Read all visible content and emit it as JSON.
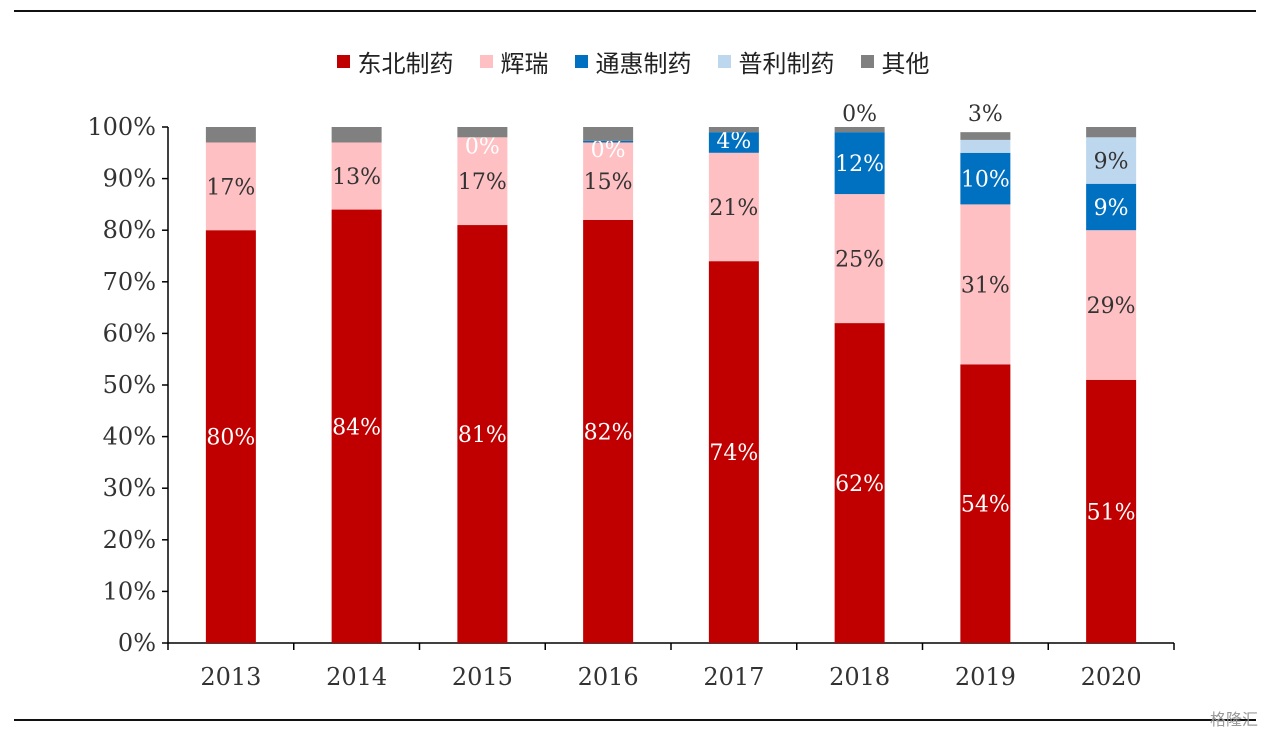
{
  "chart_data": {
    "type": "bar",
    "stacked": true,
    "categories": [
      "2013",
      "2014",
      "2015",
      "2016",
      "2017",
      "2018",
      "2019",
      "2020"
    ],
    "series": [
      {
        "name": "东北制药",
        "color": "#c00000",
        "values": [
          80,
          84,
          81,
          82,
          74,
          62,
          54,
          51
        ],
        "labels": [
          "80%",
          "84%",
          "81%",
          "82%",
          "74%",
          "62%",
          "54%",
          "51%"
        ]
      },
      {
        "name": "辉瑞",
        "color": "#ffc0c4",
        "values": [
          17,
          13,
          17,
          15,
          21,
          25,
          31,
          29
        ],
        "labels": [
          "17%",
          "13%",
          "17%",
          "15%",
          "21%",
          "25%",
          "31%",
          "29%"
        ]
      },
      {
        "name": "通惠制药",
        "color": "#0070c0",
        "values": [
          0,
          0,
          0,
          0.3,
          4,
          12,
          10,
          9
        ],
        "labels": [
          "",
          "",
          "0%",
          "0%",
          "4%",
          "12%",
          "10%",
          "9%"
        ]
      },
      {
        "name": "普利制药",
        "color": "#bdd7ee",
        "values": [
          0,
          0,
          0,
          0,
          0,
          0,
          2.5,
          9
        ],
        "labels": [
          "",
          "",
          "",
          "",
          "",
          "0%",
          "3%",
          "9%"
        ]
      },
      {
        "name": "其他",
        "color": "#808080",
        "values": [
          3,
          3,
          2,
          2.7,
          1,
          1,
          1.5,
          2
        ],
        "labels": [
          "",
          "",
          "",
          "",
          "",
          "",
          "",
          ""
        ]
      }
    ],
    "yticks": [
      "0%",
      "10%",
      "20%",
      "30%",
      "40%",
      "50%",
      "60%",
      "70%",
      "80%",
      "90%",
      "100%"
    ],
    "ylim": [
      0,
      100
    ],
    "legend_position": "top-center",
    "grid": false
  },
  "watermark": "格隆汇"
}
